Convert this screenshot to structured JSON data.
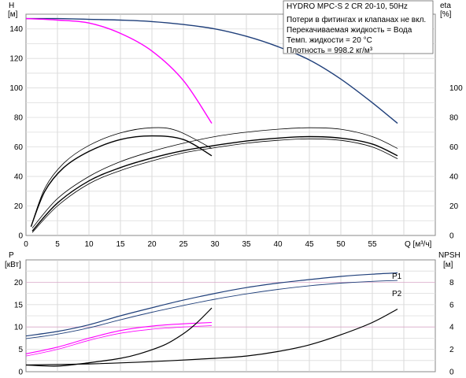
{
  "chart_data": [
    {
      "type": "line",
      "id": "top",
      "title": "HYDRO MPC-S 2 CR 20-10, 50Hz",
      "notes": [
        "Потери в фитингах и клапанах не вкл.",
        "Перекачиваемая жидкость = Вода",
        "Темп. жидкости = 20 °C",
        "Плотность = 998.2 кг/м³"
      ],
      "xlabel": "Q [м³/ч]",
      "ylabel_left": [
        "H",
        "[м]"
      ],
      "ylabel_right": [
        "eta",
        "[%]"
      ],
      "xlim": [
        0,
        65
      ],
      "ylim": [
        0,
        150
      ],
      "ylim_right": [
        0,
        150
      ],
      "x_ticks": [
        "0",
        "5",
        "10",
        "15",
        "20",
        "25",
        "30",
        "35",
        "40",
        "45",
        "50",
        "55"
      ],
      "y_ticks_left": [
        "0",
        "20",
        "40",
        "60",
        "80",
        "100",
        "120",
        "140"
      ],
      "y_ticks_right": [
        "0",
        "20",
        "40",
        "60",
        "80",
        "100"
      ],
      "grid": true,
      "series": [
        {
          "color": "#1f3f7a",
          "width": 1.4,
          "axis": "left",
          "x": [
            0,
            5,
            10,
            15,
            20,
            25,
            30,
            35,
            40,
            45,
            50,
            55,
            59
          ],
          "y": [
            147,
            147,
            146.5,
            146,
            145,
            143,
            140,
            135,
            128,
            119,
            106,
            90,
            76
          ]
        },
        {
          "color": "#ff00ff",
          "width": 1.4,
          "axis": "left",
          "x": [
            0,
            5,
            10,
            15,
            20,
            25,
            29.5
          ],
          "y": [
            147,
            146,
            144,
            137,
            125,
            105,
            76
          ]
        },
        {
          "color": "#000000",
          "width": 1.4,
          "axis": "right",
          "x": [
            0.8,
            3,
            6,
            10,
            15,
            20,
            25,
            29.5
          ],
          "y": [
            6,
            30,
            46,
            57,
            65,
            67.5,
            65,
            54
          ]
        },
        {
          "color": "#000000",
          "width": 0.8,
          "axis": "right",
          "x": [
            0.8,
            3,
            6,
            10,
            15,
            20,
            24,
            29.5
          ],
          "y": [
            6,
            32,
            49,
            61,
            69.5,
            73,
            71,
            59
          ]
        },
        {
          "color": "#000000",
          "width": 1.4,
          "axis": "right",
          "x": [
            1,
            5,
            10,
            15,
            20,
            25,
            30,
            35,
            40,
            45,
            50,
            55,
            59
          ],
          "y": [
            3,
            22,
            37,
            46,
            52.5,
            57.5,
            61,
            64,
            66,
            67,
            66,
            62,
            54
          ]
        },
        {
          "color": "#000000",
          "width": 0.8,
          "axis": "right",
          "x": [
            1,
            5,
            10,
            15,
            20,
            25,
            30,
            35,
            40,
            45,
            50,
            55,
            59
          ],
          "y": [
            5,
            25,
            40,
            50,
            57,
            62.5,
            67,
            70,
            72,
            73,
            72,
            67,
            59
          ]
        },
        {
          "color": "#000000",
          "width": 0.8,
          "axis": "right",
          "x": [
            1,
            5,
            10,
            15,
            20,
            25,
            30,
            35,
            40,
            45,
            50,
            55,
            59
          ],
          "y": [
            2,
            20,
            35,
            44,
            50.5,
            56,
            59.5,
            62.5,
            64.5,
            65.5,
            64.5,
            60,
            52
          ]
        }
      ]
    },
    {
      "type": "line",
      "id": "bottom",
      "ylabel_left": [
        "P",
        "[кВт]"
      ],
      "ylabel_right": [
        "NPSH",
        "[м]"
      ],
      "xlim": [
        0,
        65
      ],
      "ylim": [
        0,
        25
      ],
      "ylim_right": [
        0,
        10
      ],
      "y_ticks_left": [
        "0",
        "5",
        "10",
        "15",
        "20"
      ],
      "y_ticks_right": [
        "0",
        "2",
        "4",
        "6",
        "8"
      ],
      "grid": true,
      "series_labels": [
        "P1",
        "P2"
      ],
      "series": [
        {
          "name": "P1",
          "color": "#1f3f7a",
          "width": 1.2,
          "axis": "left",
          "x": [
            0,
            5,
            10,
            15,
            20,
            25,
            30,
            35,
            40,
            45,
            50,
            55,
            59
          ],
          "y": [
            8,
            9,
            10.5,
            12.5,
            14.3,
            16,
            17.5,
            18.8,
            19.8,
            20.6,
            21.3,
            21.8,
            22.1
          ]
        },
        {
          "name": "P2",
          "color": "#1f3f7a",
          "width": 0.9,
          "axis": "left",
          "x": [
            0,
            5,
            10,
            15,
            20,
            25,
            30,
            35,
            40,
            45,
            50,
            55,
            59
          ],
          "y": [
            7.4,
            8.4,
            9.8,
            11.6,
            13.3,
            14.8,
            16.2,
            17.4,
            18.4,
            19.2,
            19.8,
            20.2,
            20.4
          ]
        },
        {
          "color": "#ff00ff",
          "width": 1.1,
          "axis": "left",
          "x": [
            0,
            5,
            10,
            15,
            20,
            25,
            29.5
          ],
          "y": [
            4,
            5.5,
            7.5,
            9.2,
            10.2,
            10.7,
            11
          ]
        },
        {
          "color": "#ff00ff",
          "width": 0.8,
          "axis": "left",
          "x": [
            0,
            5,
            10,
            15,
            20,
            25,
            29.5
          ],
          "y": [
            3.5,
            5,
            7,
            8.6,
            9.5,
            10,
            10.3
          ]
        },
        {
          "color": "#000000",
          "width": 1.2,
          "axis": "right",
          "x": [
            0,
            5,
            10,
            15,
            18,
            22,
            25,
            27,
            29.5
          ],
          "y": [
            0.6,
            0.5,
            0.8,
            1.2,
            1.6,
            2.4,
            3.4,
            4.3,
            5.7
          ]
        },
        {
          "color": "#000000",
          "width": 1.2,
          "axis": "right",
          "x": [
            0,
            10,
            20,
            30,
            35,
            40,
            45,
            50,
            55,
            59
          ],
          "y": [
            0.6,
            0.7,
            0.9,
            1.2,
            1.4,
            1.8,
            2.4,
            3.3,
            4.4,
            5.6
          ]
        }
      ]
    }
  ]
}
